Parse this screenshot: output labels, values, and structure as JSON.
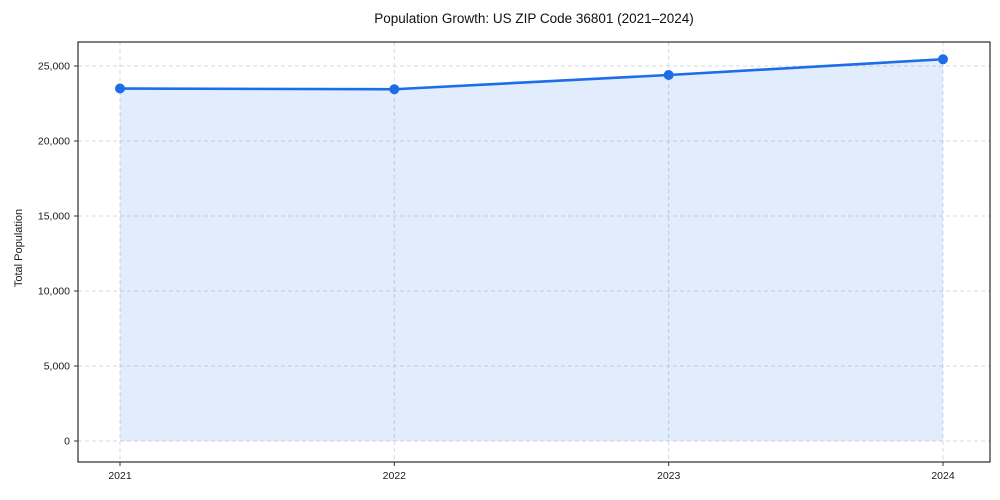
{
  "chart_data": {
    "type": "area",
    "title": "Population Growth: US ZIP Code 36801 (2021–2024)",
    "xlabel": "",
    "ylabel": "Total Population",
    "x": [
      2021,
      2022,
      2023,
      2024
    ],
    "series": [
      {
        "name": "Total Population",
        "values": [
          23500,
          23450,
          24400,
          25450
        ]
      }
    ],
    "xticks": [
      2021,
      2022,
      2023,
      2024
    ],
    "yticks": [
      0,
      5000,
      10000,
      15000,
      20000,
      25000
    ],
    "ylim": [
      -1400,
      26600
    ],
    "grid": true,
    "grid_style": "dashed",
    "legend": false,
    "colors": {
      "line": "#1b6de8",
      "marker": "#1b6de8",
      "fill": "rgba(27, 109, 232, 0.13)",
      "grid": "#d6d9de",
      "spine": "#000000",
      "tick": "#333333",
      "text": "#1a1a1a",
      "background": "#ffffff"
    }
  }
}
